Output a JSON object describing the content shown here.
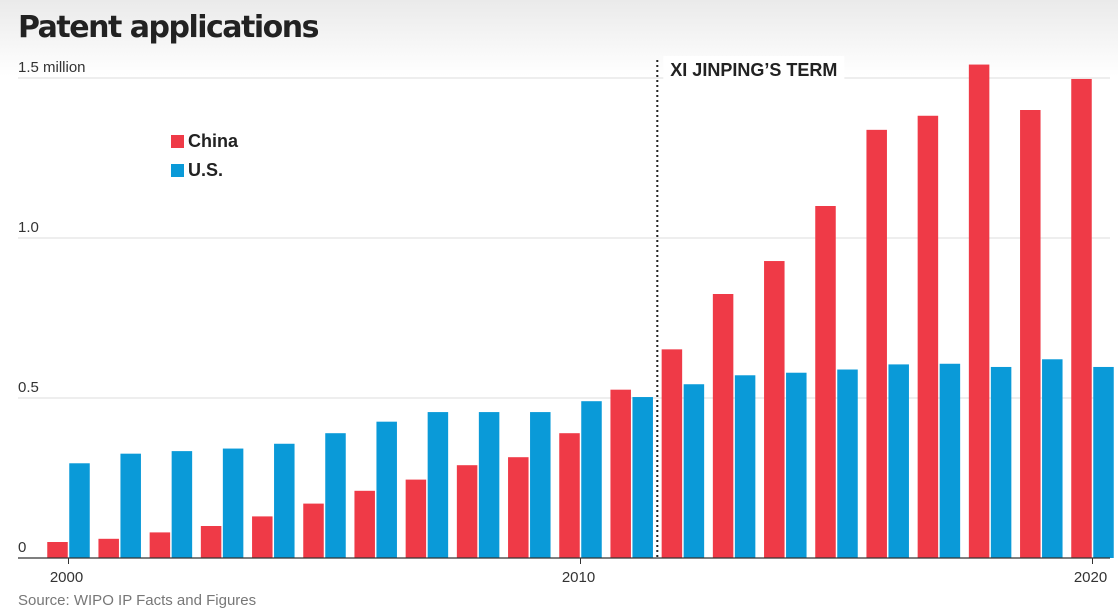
{
  "title": "Patent applications",
  "source": "Source: WIPO IP Facts and Figures",
  "colors": {
    "china": "#ef3a47",
    "us": "#0a9ad8",
    "grid": "#dddddd",
    "axis": "#333333",
    "text": "#333333"
  },
  "chart_data": {
    "type": "bar",
    "categories": [
      "2000",
      "2001",
      "2002",
      "2003",
      "2004",
      "2005",
      "2006",
      "2007",
      "2008",
      "2009",
      "2010",
      "2011",
      "2012",
      "2013",
      "2014",
      "2015",
      "2016",
      "2017",
      "2018",
      "2019",
      "2020"
    ],
    "series": [
      {
        "name": "China",
        "color": "#ef3a47",
        "values": [
          0.05,
          0.06,
          0.08,
          0.1,
          0.13,
          0.17,
          0.21,
          0.245,
          0.29,
          0.315,
          0.39,
          0.526,
          0.652,
          0.825,
          0.928,
          1.1,
          1.338,
          1.382,
          1.542,
          1.4,
          1.497
        ]
      },
      {
        "name": "U.S.",
        "color": "#0a9ad8",
        "values": [
          0.296,
          0.326,
          0.334,
          0.342,
          0.357,
          0.39,
          0.426,
          0.456,
          0.456,
          0.456,
          0.49,
          0.503,
          0.543,
          0.571,
          0.579,
          0.589,
          0.605,
          0.607,
          0.597,
          0.621,
          0.597
        ]
      }
    ],
    "yticks": [
      {
        "value": 0,
        "label": "0"
      },
      {
        "value": 0.5,
        "label": "0.5"
      },
      {
        "value": 1.0,
        "label": "1.0"
      },
      {
        "value": 1.5,
        "label": "1.5 million"
      }
    ],
    "xticks": [
      {
        "year": "2000",
        "label": "2000"
      },
      {
        "year": "2010",
        "label": "2010"
      },
      {
        "year": "2020",
        "label": "2020"
      }
    ],
    "ylim": [
      0,
      1.55
    ],
    "grid": true,
    "legend_position": "top-left",
    "annotation": {
      "label": "XI JINPING’S TERM",
      "between": [
        "2011",
        "2012"
      ]
    }
  }
}
